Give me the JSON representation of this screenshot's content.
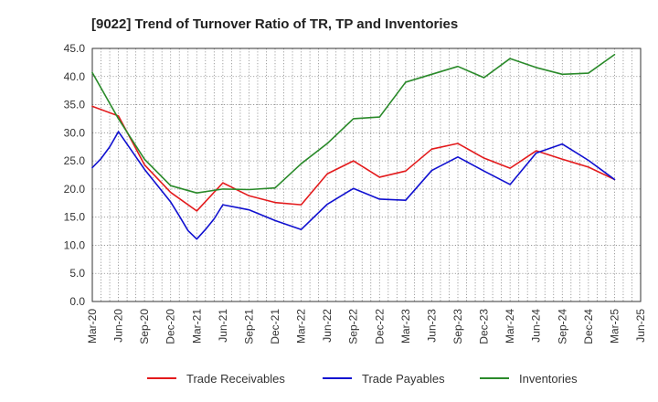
{
  "chart_data": {
    "type": "line",
    "title": "[9022]  Trend of Turnover Ratio of TR, TP and Inventories",
    "xlabel": "",
    "ylabel": "",
    "ylim": [
      0,
      45
    ],
    "y_ticks": [
      "0.0",
      "5.0",
      "10.0",
      "15.0",
      "20.0",
      "25.0",
      "30.0",
      "35.0",
      "40.0",
      "45.0"
    ],
    "x_ticks": [
      "Mar-20",
      "Jun-20",
      "Sep-20",
      "Dec-20",
      "Mar-21",
      "Jun-21",
      "Sep-21",
      "Dec-21",
      "Mar-22",
      "Jun-22",
      "Sep-22",
      "Dec-22",
      "Mar-23",
      "Jun-23",
      "Sep-23",
      "Dec-23",
      "Mar-24",
      "Jun-24",
      "Sep-24",
      "Dec-24",
      "Mar-25",
      "Jun-25"
    ],
    "grid": true,
    "legend_position": "bottom",
    "series": [
      {
        "name": "Trade Receivables",
        "color": "#e31a1c",
        "points": [
          [
            "Mar-20",
            34.7
          ],
          [
            "Jun-20",
            33.0
          ],
          [
            "Sep-20",
            24.3
          ],
          [
            "Dec-20",
            19.4
          ],
          [
            "Mar-21",
            16.1
          ],
          [
            "Jun-21",
            21.1
          ],
          [
            "Sep-21",
            18.8
          ],
          [
            "Dec-21",
            17.6
          ],
          [
            "Mar-22",
            17.2
          ],
          [
            "Jun-22",
            22.7
          ],
          [
            "Sep-22",
            25.0
          ],
          [
            "Dec-22",
            22.1
          ],
          [
            "Mar-23",
            23.2
          ],
          [
            "Jun-23",
            27.1
          ],
          [
            "Sep-23",
            28.1
          ],
          [
            "Dec-23",
            25.5
          ],
          [
            "Mar-24",
            23.7
          ],
          [
            "Jun-24",
            26.8
          ],
          [
            "Sep-24",
            25.3
          ],
          [
            "Dec-24",
            23.9
          ],
          [
            "Mar-25",
            21.7
          ]
        ]
      },
      {
        "name": "Trade Payables",
        "color": "#1010d0",
        "points": [
          [
            "Mar-20",
            23.8
          ],
          [
            "Apr-20",
            25.4
          ],
          [
            "May-20",
            27.5
          ],
          [
            "Jun-20",
            30.2
          ],
          [
            "Sep-20",
            23.5
          ],
          [
            "Dec-20",
            17.7
          ],
          [
            "Jan-21",
            15.2
          ],
          [
            "Feb-21",
            12.6
          ],
          [
            "Mar-21",
            11.1
          ],
          [
            "Apr-21",
            12.8
          ],
          [
            "May-21",
            14.7
          ],
          [
            "Jun-21",
            17.2
          ],
          [
            "Sep-21",
            16.3
          ],
          [
            "Dec-21",
            14.4
          ],
          [
            "Mar-22",
            12.8
          ],
          [
            "Jun-22",
            17.3
          ],
          [
            "Sep-22",
            20.1
          ],
          [
            "Dec-22",
            18.2
          ],
          [
            "Mar-23",
            18.0
          ],
          [
            "Jun-23",
            23.3
          ],
          [
            "Sep-23",
            25.7
          ],
          [
            "Dec-23",
            23.2
          ],
          [
            "Mar-24",
            20.8
          ],
          [
            "Jun-24",
            26.4
          ],
          [
            "Sep-24",
            28.0
          ],
          [
            "Dec-24",
            25.1
          ],
          [
            "Mar-25",
            21.7
          ]
        ]
      },
      {
        "name": "Inventories",
        "color": "#2a8a2a",
        "points": [
          [
            "Mar-20",
            40.7
          ],
          [
            "Jun-20",
            32.5
          ],
          [
            "Sep-20",
            25.3
          ],
          [
            "Dec-20",
            20.6
          ],
          [
            "Mar-21",
            19.3
          ],
          [
            "Jun-21",
            20.0
          ],
          [
            "Sep-21",
            19.9
          ],
          [
            "Dec-21",
            20.2
          ],
          [
            "Mar-22",
            24.5
          ],
          [
            "Jun-22",
            28.1
          ],
          [
            "Sep-22",
            32.5
          ],
          [
            "Dec-22",
            32.8
          ],
          [
            "Mar-23",
            39.0
          ],
          [
            "Jun-23",
            40.4
          ],
          [
            "Sep-23",
            41.8
          ],
          [
            "Dec-23",
            39.8
          ],
          [
            "Mar-24",
            43.2
          ],
          [
            "Jun-24",
            41.6
          ],
          [
            "Sep-24",
            40.4
          ],
          [
            "Dec-24",
            40.6
          ],
          [
            "Mar-25",
            43.9
          ]
        ]
      }
    ]
  }
}
